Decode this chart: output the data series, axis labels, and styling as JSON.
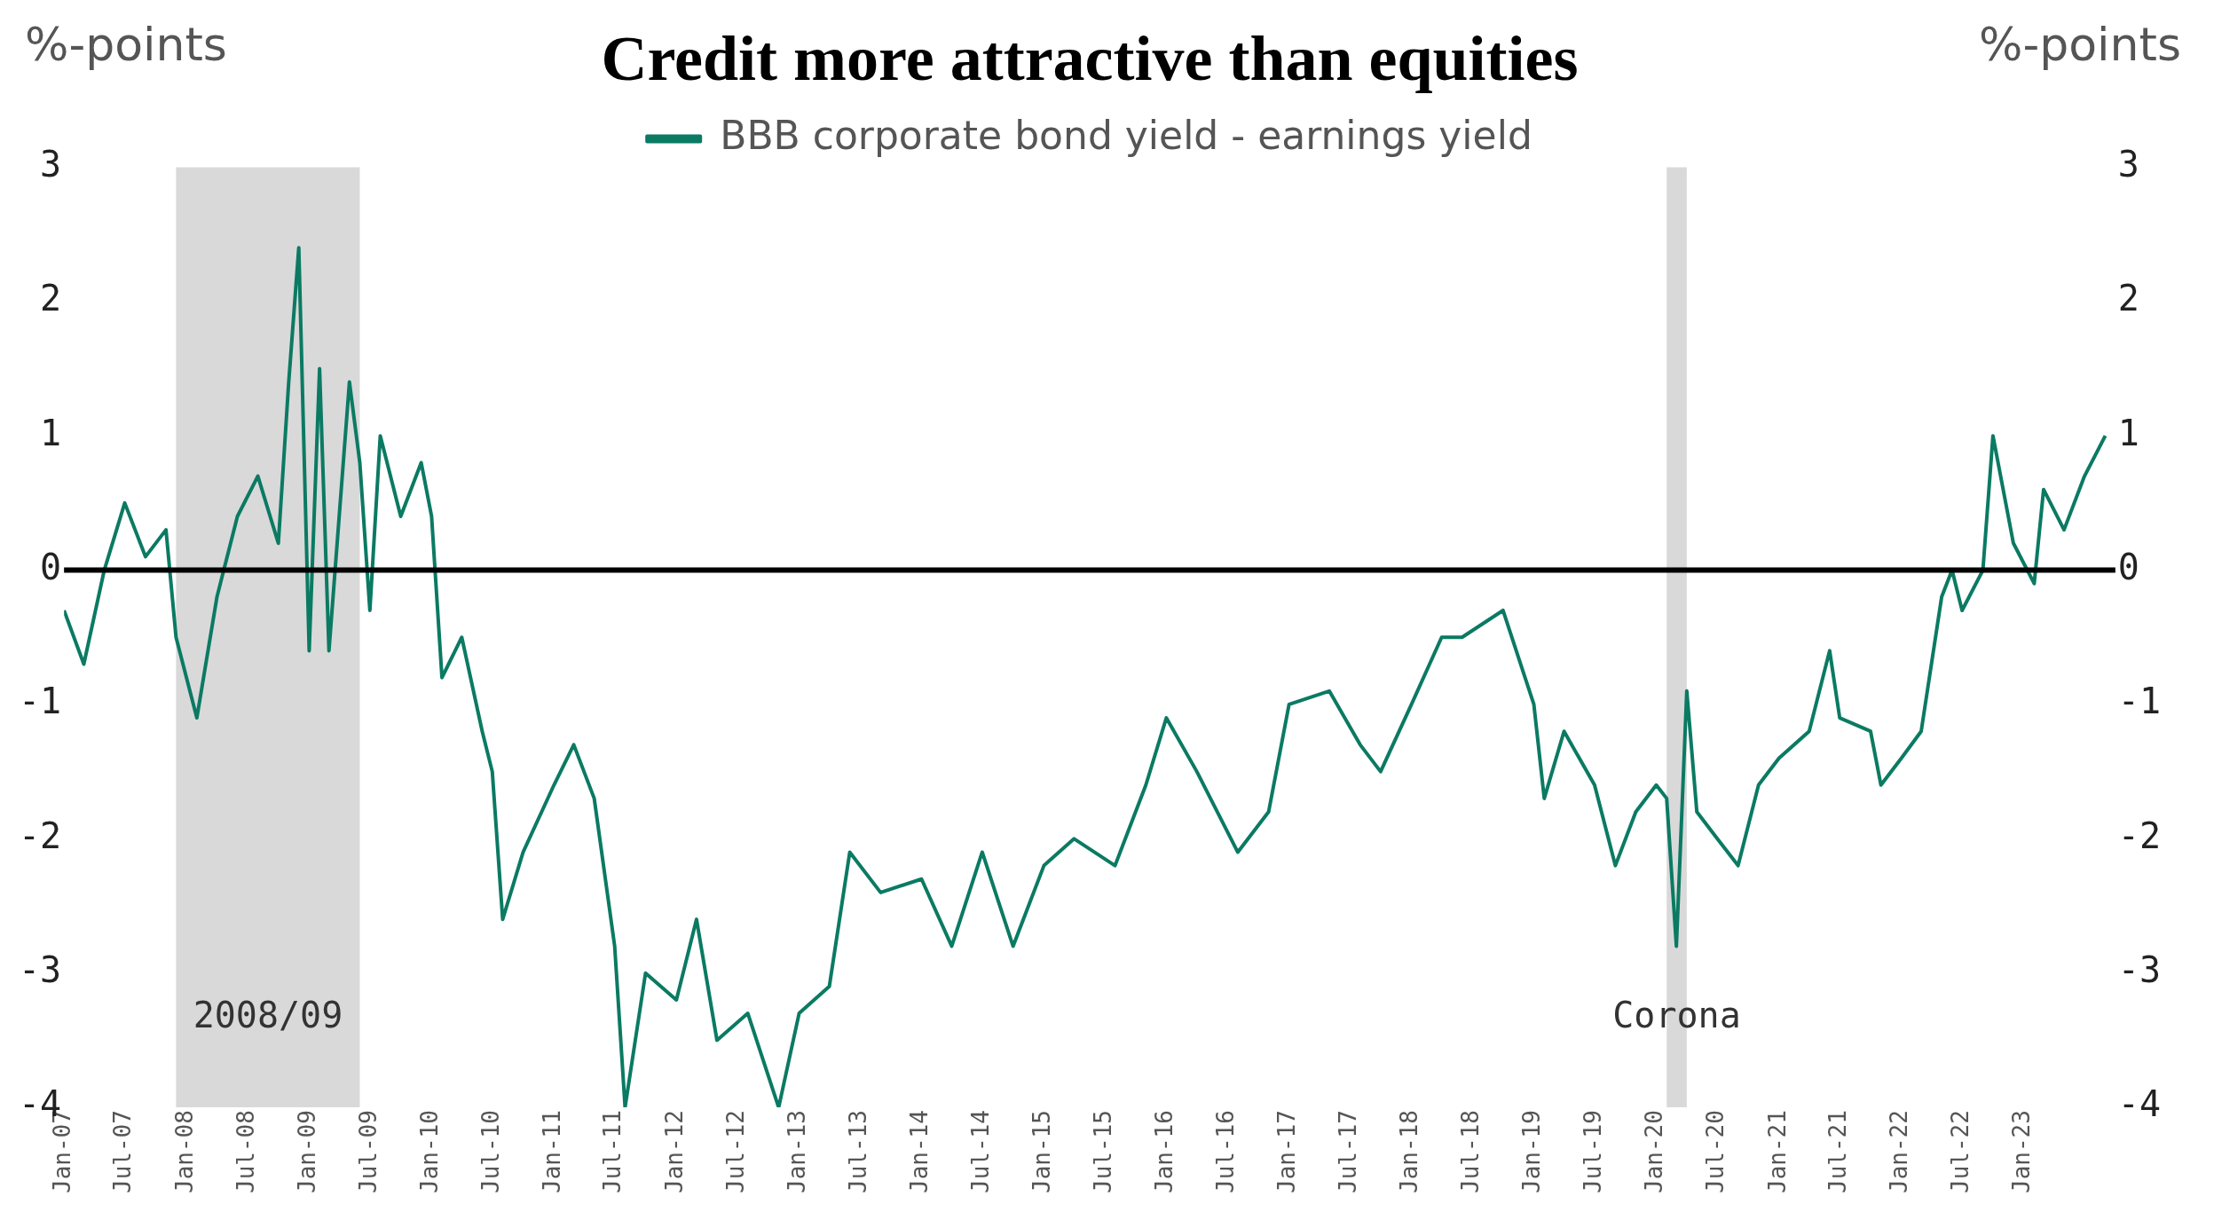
{
  "chart_data": {
    "type": "line",
    "title": "Credit more attractive than equities",
    "ylabel": "%-points",
    "y2label": "%-points",
    "x": [
      "2007-01",
      "2007-03",
      "2007-05",
      "2007-07",
      "2007-09",
      "2007-11",
      "2007-12",
      "2008-02",
      "2008-04",
      "2008-06",
      "2008-08",
      "2008-10",
      "2008-11",
      "2008-12",
      "2009-01",
      "2009-02",
      "2009-03",
      "2009-05",
      "2009-06",
      "2009-07",
      "2009-08",
      "2009-10",
      "2009-12",
      "2010-01",
      "2010-02",
      "2010-04",
      "2010-06",
      "2010-07",
      "2010-08",
      "2010-10",
      "2011-01",
      "2011-03",
      "2011-05",
      "2011-07",
      "2011-08",
      "2011-10",
      "2012-01",
      "2012-03",
      "2012-05",
      "2012-08",
      "2012-11",
      "2013-01",
      "2013-04",
      "2013-06",
      "2013-09",
      "2014-01",
      "2014-04",
      "2014-07",
      "2014-10",
      "2015-01",
      "2015-04",
      "2015-08",
      "2015-11",
      "2016-01",
      "2016-04",
      "2016-08",
      "2016-11",
      "2017-01",
      "2017-05",
      "2017-08",
      "2017-10",
      "2018-01",
      "2018-04",
      "2018-06",
      "2018-10",
      "2019-01",
      "2019-02",
      "2019-04",
      "2019-07",
      "2019-09",
      "2019-11",
      "2020-01",
      "2020-02",
      "2020-03",
      "2020-04",
      "2020-05",
      "2020-07",
      "2020-09",
      "2020-11",
      "2021-01",
      "2021-04",
      "2021-06",
      "2021-07",
      "2021-10",
      "2021-11",
      "2022-01",
      "2022-03",
      "2022-05",
      "2022-06",
      "2022-07",
      "2022-09",
      "2022-10",
      "2022-12",
      "2023-02",
      "2023-03",
      "2023-05",
      "2023-07",
      "2023-09"
    ],
    "series": [
      {
        "name": "BBB corporate bond yield - earnings yield",
        "color": "#0b7a63",
        "values": [
          -0.3,
          -0.7,
          0,
          0.5,
          0.1,
          0.3,
          -0.5,
          -1.1,
          -0.2,
          0.4,
          0.7,
          0.2,
          1.4,
          2.4,
          -0.6,
          1.5,
          -0.6,
          1.4,
          0.8,
          -0.3,
          1.0,
          0.4,
          0.8,
          0.4,
          -0.8,
          -0.5,
          -1.2,
          -1.5,
          -2.6,
          -2.1,
          -1.6,
          -1.3,
          -1.7,
          -2.8,
          -4.0,
          -3.0,
          -3.2,
          -2.6,
          -3.5,
          -3.3,
          -4.0,
          -3.3,
          -3.1,
          -2.1,
          -2.4,
          -2.3,
          -2.8,
          -2.1,
          -2.8,
          -2.2,
          -2.0,
          -2.2,
          -1.6,
          -1.1,
          -1.5,
          -2.1,
          -1.8,
          -1.0,
          -0.9,
          -1.3,
          -1.5,
          -1.0,
          -0.5,
          -0.5,
          -0.3,
          -1.0,
          -1.7,
          -1.2,
          -1.6,
          -2.2,
          -1.8,
          -1.6,
          -1.7,
          -2.8,
          -0.9,
          -1.8,
          -2.0,
          -2.2,
          -1.6,
          -1.4,
          -1.2,
          -0.6,
          -1.1,
          -1.2,
          -1.6,
          -1.4,
          -1.2,
          -0.2,
          0.0,
          -0.3,
          0.0,
          1.0,
          0.2,
          -0.1,
          0.6,
          0.3,
          0.7,
          1.0
        ]
      }
    ],
    "xlim": [
      "2007-01",
      "2023-10"
    ],
    "xticks": [
      {
        "value": "2007-01",
        "label": "Jan-07"
      },
      {
        "value": "2007-07",
        "label": "Jul-07"
      },
      {
        "value": "2008-01",
        "label": "Jan-08"
      },
      {
        "value": "2008-07",
        "label": "Jul-08"
      },
      {
        "value": "2009-01",
        "label": "Jan-09"
      },
      {
        "value": "2009-07",
        "label": "Jul-09"
      },
      {
        "value": "2010-01",
        "label": "Jan-10"
      },
      {
        "value": "2010-07",
        "label": "Jul-10"
      },
      {
        "value": "2011-01",
        "label": "Jan-11"
      },
      {
        "value": "2011-07",
        "label": "Jul-11"
      },
      {
        "value": "2012-01",
        "label": "Jan-12"
      },
      {
        "value": "2012-07",
        "label": "Jul-12"
      },
      {
        "value": "2013-01",
        "label": "Jan-13"
      },
      {
        "value": "2013-07",
        "label": "Jul-13"
      },
      {
        "value": "2014-01",
        "label": "Jan-14"
      },
      {
        "value": "2014-07",
        "label": "Jul-14"
      },
      {
        "value": "2015-01",
        "label": "Jan-15"
      },
      {
        "value": "2015-07",
        "label": "Jul-15"
      },
      {
        "value": "2016-01",
        "label": "Jan-16"
      },
      {
        "value": "2016-07",
        "label": "Jul-16"
      },
      {
        "value": "2017-01",
        "label": "Jan-17"
      },
      {
        "value": "2017-07",
        "label": "Jul-17"
      },
      {
        "value": "2018-01",
        "label": "Jan-18"
      },
      {
        "value": "2018-07",
        "label": "Jul-18"
      },
      {
        "value": "2019-01",
        "label": "Jan-19"
      },
      {
        "value": "2019-07",
        "label": "Jul-19"
      },
      {
        "value": "2020-01",
        "label": "Jan-20"
      },
      {
        "value": "2020-07",
        "label": "Jul-20"
      },
      {
        "value": "2021-01",
        "label": "Jan-21"
      },
      {
        "value": "2021-07",
        "label": "Jul-21"
      },
      {
        "value": "2022-01",
        "label": "Jan-22"
      },
      {
        "value": "2022-07",
        "label": "Jul-22"
      },
      {
        "value": "2023-01",
        "label": "Jan-23"
      }
    ],
    "ylim": [
      -4,
      3
    ],
    "yticks": [
      -4,
      -3,
      -2,
      -1,
      0,
      1,
      2,
      3
    ],
    "y2lim": [
      -4,
      3
    ],
    "y2ticks": [
      -4,
      -3,
      -2,
      -1,
      0,
      1,
      2,
      3
    ],
    "ref_lines": [
      {
        "axis": "y",
        "value": 0,
        "color": "#000000"
      }
    ],
    "bands": [
      {
        "axis": "x",
        "from": "2007-12",
        "to": "2009-06",
        "color": "#d9d9d9",
        "label": "2008/09"
      },
      {
        "axis": "x",
        "from": "2020-02",
        "to": "2020-04",
        "color": "#d9d9d9",
        "label": "Corona"
      }
    ],
    "legend": "top",
    "grid": false,
    "marker": "none",
    "line_style": "solid"
  }
}
